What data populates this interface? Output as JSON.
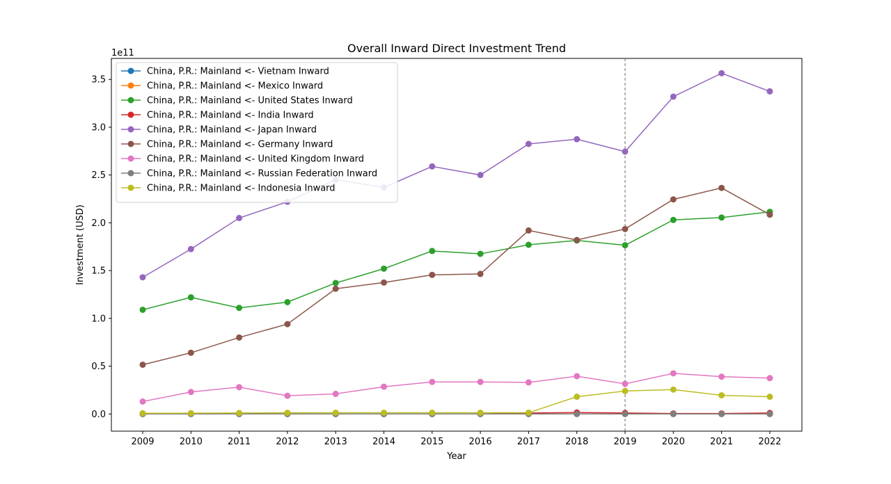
{
  "chart_data": {
    "type": "line",
    "title": "Overall Inward Direct Investment Trend",
    "xlabel": "Year",
    "ylabel": "Investment (USD)",
    "y_offset_label": "1e11",
    "x": [
      2009,
      2010,
      2011,
      2012,
      2013,
      2014,
      2015,
      2016,
      2017,
      2018,
      2019,
      2020,
      2021,
      2022
    ],
    "x_tick_labels": [
      "2009",
      "2010",
      "2011",
      "2012",
      "2013",
      "2014",
      "2015",
      "2016",
      "2017",
      "2018",
      "2019",
      "2020",
      "2021",
      "2022"
    ],
    "ylim": [
      -18000000000.0,
      372000000000.0
    ],
    "y_ticks": [
      0,
      50000000000.0,
      100000000000.0,
      150000000000.0,
      200000000000.0,
      250000000000.0,
      300000000000.0,
      350000000000.0
    ],
    "y_tick_labels": [
      "0.0",
      "0.5",
      "1.0",
      "1.5",
      "2.0",
      "2.5",
      "3.0",
      "3.5"
    ],
    "vline_x": 2019,
    "grid": false,
    "legend_position": "top-left",
    "series": [
      {
        "name": "China, P.R.: Mainland <- Vietnam Inward",
        "color": "#1f77b4",
        "values": [
          0,
          0,
          0,
          0,
          0,
          0,
          0,
          0,
          0,
          0,
          0,
          0,
          0,
          0
        ]
      },
      {
        "name": "China, P.R.: Mainland <- Mexico Inward",
        "color": "#ff7f0e",
        "values": [
          0,
          0,
          0,
          0,
          0,
          0,
          0,
          0,
          0,
          0,
          0,
          0,
          0,
          0
        ]
      },
      {
        "name": "China, P.R.: Mainland <- United States Inward",
        "color": "#2ca02c",
        "values": [
          109000000000.0,
          122000000000.0,
          111000000000.0,
          117000000000.0,
          137000000000.0,
          152000000000.0,
          170500000000.0,
          167500000000.0,
          177000000000.0,
          181500000000.0,
          176500000000.0,
          203000000000.0,
          205500000000.0,
          211500000000.0
        ]
      },
      {
        "name": "China, P.R.: Mainland <- India Inward",
        "color": "#d62728",
        "values": [
          0,
          0,
          0,
          0,
          0,
          0,
          0,
          0,
          1000000000.0,
          1500000000.0,
          1000000000.0,
          500000000.0,
          500000000.0,
          1000000000.0
        ]
      },
      {
        "name": "China, P.R.: Mainland <- Japan Inward",
        "color": "#9467bd",
        "values": [
          143000000000.0,
          172500000000.0,
          205000000000.0,
          222000000000.0,
          245000000000.0,
          237000000000.0,
          259000000000.0,
          250000000000.0,
          282500000000.0,
          287500000000.0,
          274500000000.0,
          332000000000.0,
          356500000000.0,
          337500000000.0
        ]
      },
      {
        "name": "China, P.R.: Mainland <- Germany Inward",
        "color": "#8c564b",
        "values": [
          51500000000.0,
          64000000000.0,
          80000000000.0,
          94000000000.0,
          131000000000.0,
          137500000000.0,
          145500000000.0,
          146500000000.0,
          192000000000.0,
          182000000000.0,
          193500000000.0,
          224500000000.0,
          236500000000.0,
          208500000000.0
        ]
      },
      {
        "name": "China, P.R.: Mainland <- United Kingdom Inward",
        "color": "#e377c2",
        "values": [
          13000000000.0,
          23000000000.0,
          28000000000.0,
          19000000000.0,
          21000000000.0,
          28500000000.0,
          33500000000.0,
          33500000000.0,
          33000000000.0,
          39500000000.0,
          31500000000.0,
          42500000000.0,
          39000000000.0,
          37500000000.0
        ]
      },
      {
        "name": "China, P.R.: Mainland <- Russian Federation Inward",
        "color": "#7f7f7f",
        "values": [
          0,
          0,
          0,
          0,
          0,
          0,
          0,
          0,
          0,
          0,
          0,
          0,
          0,
          0
        ]
      },
      {
        "name": "China, P.R.: Mainland <- Indonesia Inward",
        "color": "#bcbd22",
        "values": [
          700000000.0,
          800000000.0,
          1000000000.0,
          1200000000.0,
          1300000000.0,
          1300000000.0,
          1300000000.0,
          1300000000.0,
          1300000000.0,
          18000000000.0,
          24000000000.0,
          25500000000.0,
          19500000000.0,
          18000000000.0
        ]
      }
    ]
  }
}
